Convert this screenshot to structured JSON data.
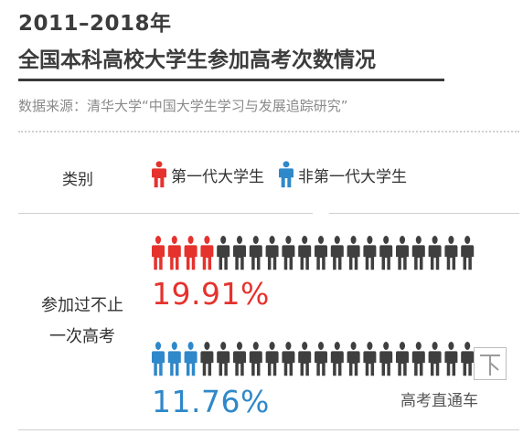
{
  "title": {
    "line1": "2011–2018年",
    "line2": "全国本科高校大学生参加高考次数情况"
  },
  "source": "数据来源：清华大学“中国大学生学习与发展追踪研究”",
  "header": {
    "category_label": "类别"
  },
  "legend": {
    "first_gen": "第一代大学生",
    "non_first_gen": "非第一代大学生"
  },
  "row_label": {
    "line1": "参加过不止",
    "line2": "一次高考"
  },
  "watermark": "高考直通车",
  "colors": {
    "first_gen": "#e5322d",
    "non_first_gen": "#2f88c9",
    "neutral": "#3f3f3f"
  },
  "chart_data": {
    "type": "pictograph",
    "icons_per_row": 20,
    "category": "参加过不止一次高考",
    "series": [
      {
        "name": "第一代大学生",
        "value": 19.91,
        "label": "19.91%",
        "highlighted_icons": 4
      },
      {
        "name": "非第一代大学生",
        "value": 11.76,
        "label": "11.76%",
        "highlighted_icons": 3
      }
    ],
    "unit": "%"
  }
}
